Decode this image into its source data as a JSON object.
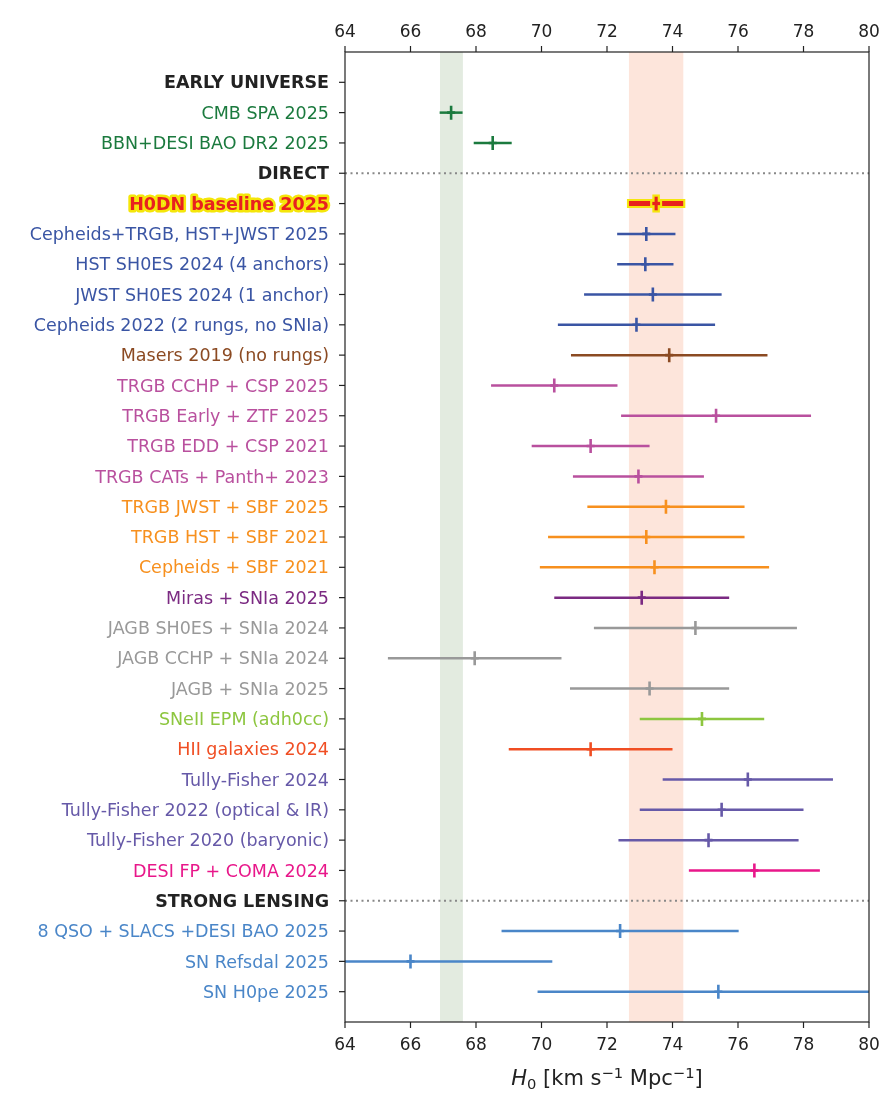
{
  "chart_data": {
    "type": "scatter",
    "orientation": "horizontal",
    "marker": "cross",
    "categories": [
      "EARLY UNIVERSE",
      "CMB SPA 2025",
      "BBN+DESI BAO DR2 2025",
      "DIRECT",
      "H0DN baseline 2025",
      "Cepheids+TRGB, HST+JWST 2025",
      "HST SH0ES 2024 (4 anchors)",
      "JWST SH0ES 2024 (1 anchor)",
      "Cepheids 2022 (2 rungs, no SNIa)",
      "Masers 2019 (no rungs)",
      "TRGB CCHP + CSP 2025",
      "TRGB Early + ZTF 2025",
      "TRGB EDD + CSP 2021",
      "TRGB CATs + Panth+ 2023",
      "TRGB JWST + SBF 2025",
      "TRGB HST + SBF 2021",
      "Cepheids + SBF 2021",
      "Miras + SNIa 2025",
      "JAGB SH0ES + SNIa 2024",
      "JAGB CCHP + SNIa 2024",
      "JAGB + SNIa 2025",
      "SNeII EPM (adh0cc)",
      "HII galaxies 2024",
      "Tully-Fisher 2024",
      "Tully-Fisher 2022 (optical & IR)",
      "Tully-Fisher 2020 (baryonic)",
      "DESI FP + COMA 2024",
      "STRONG LENSING",
      "8 QSO + SLACS +DESI BAO 2025",
      "SN Refsdal 2025",
      "SN H0pe 2025"
    ],
    "values": [
      null,
      67.24,
      68.51,
      null,
      73.5,
      73.2,
      73.17,
      73.4,
      72.9,
      73.9,
      70.39,
      75.33,
      71.5,
      72.96,
      73.8,
      73.2,
      73.45,
      73.06,
      74.7,
      67.96,
      73.3,
      74.9,
      71.5,
      76.3,
      75.5,
      75.1,
      76.5,
      null,
      72.4,
      66.0,
      75.4
    ],
    "errors": [
      null,
      0.35,
      0.58,
      null,
      0.83,
      0.89,
      0.86,
      2.1,
      2.4,
      3.0,
      1.93,
      2.9,
      1.8,
      2.0,
      2.4,
      3.0,
      3.5,
      2.67,
      3.1,
      2.65,
      2.43,
      1.9,
      2.5,
      2.6,
      2.5,
      2.75,
      2.0,
      null,
      3.62,
      [
        64,
        70.33
      ],
      [
        69.88,
        80
      ]
    ],
    "colors": [
      "#222222",
      "#1b7a3e",
      "#1b7a3e",
      "#222222",
      "#e8211f",
      "#3a55a4",
      "#3a55a4",
      "#3a55a4",
      "#3a55a4",
      "#8b4a22",
      "#b9509e",
      "#b9509e",
      "#b9509e",
      "#b9509e",
      "#f7901e",
      "#f7901e",
      "#f7901e",
      "#7b2a82",
      "#999999",
      "#999999",
      "#999999",
      "#8dc63f",
      "#f04e23",
      "#6659a8",
      "#6659a8",
      "#6659a8",
      "#e8178a",
      "#222222",
      "#4a86c8",
      "#4a86c8",
      "#4a86c8"
    ],
    "xlim": [
      64,
      80
    ],
    "xticks": [
      64,
      66,
      68,
      70,
      72,
      74,
      76,
      78,
      80
    ],
    "x2lim": [
      64,
      80
    ],
    "x2ticks": [
      64,
      66,
      68,
      70,
      72,
      74,
      76,
      78,
      80
    ],
    "xlabel": "H$_{0}$ [km s$^{−1}$ Mpc$^{−1}$]",
    "bands": [
      {
        "axis": "x",
        "from": 66.9,
        "to": 67.6,
        "color": "#e3ebe0"
      },
      {
        "axis": "x",
        "from": 72.67,
        "to": 74.33,
        "color": "#fde5db"
      }
    ],
    "ref_lines": [
      {
        "axis": "y",
        "value": "DIRECT",
        "color": "#888888",
        "line_style": "dotted"
      },
      {
        "axis": "y",
        "value": "STRONG LENSING",
        "color": "#888888",
        "line_style": "dotted"
      }
    ]
  }
}
